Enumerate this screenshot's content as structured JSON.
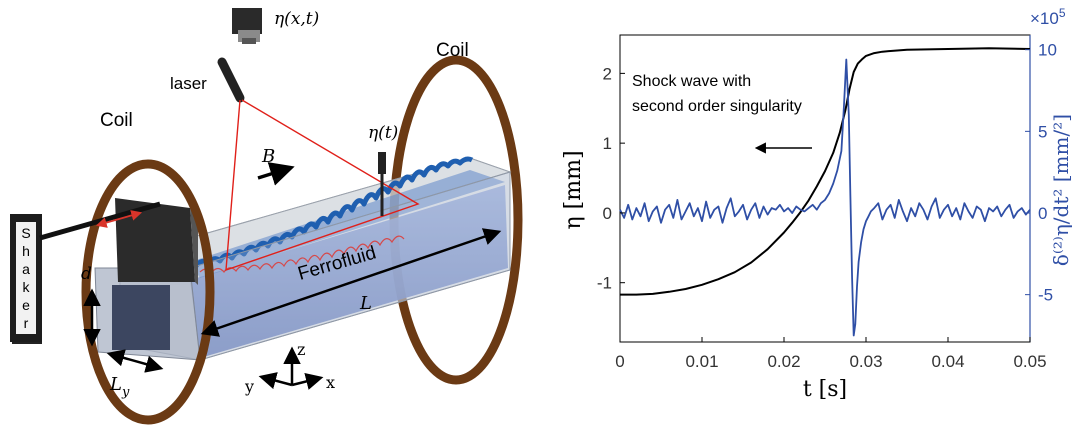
{
  "schematic": {
    "camera_label": "η(x,t)",
    "laser_label": "laser",
    "coil_left_label": "Coil",
    "coil_right_label": "Coil",
    "b_field_label": "B",
    "probe_label": "η(t)",
    "shaker_letters": [
      "S",
      "h",
      "a",
      "k",
      "e",
      "r"
    ],
    "ferrofluid_label": "Ferrofluid",
    "length_label": "L",
    "depth_label": "d",
    "width_label_main": "L",
    "width_label_sub": "y",
    "axis_z": "z",
    "axis_y": "y",
    "axis_x": "x"
  },
  "colors": {
    "coil": "#6b3a14",
    "laser": "#e0201a",
    "shaker_arrow": "#d9342a",
    "fluid": "#7f97c8",
    "wave": "#1f5fb0",
    "eta_line": "#000000",
    "accel_line": "#2f4fa6",
    "right_axis": "#2f4fa6"
  },
  "chart_data": {
    "type": "line",
    "xlabel": "t [s]",
    "ylabel_left": "η [mm]",
    "ylabel_right": "δ⁽²⁾η/dt² [mm/²]",
    "right_multiplier_base": "×10",
    "right_multiplier_exp": "5",
    "xlim": [
      0,
      0.05
    ],
    "ylim_left": [
      -1.85,
      2.55
    ],
    "ylim_right": [
      -7.9,
      10.9
    ],
    "x_ticks": [
      "0",
      "0.01",
      "0.02",
      "0.03",
      "0.04",
      "0.05"
    ],
    "y_ticks_left": [
      "-1",
      "0",
      "1",
      "2"
    ],
    "y_ticks_right": [
      "-5",
      "0",
      "5",
      "10"
    ],
    "annotation": [
      "Shock wave with",
      "second order singularity"
    ],
    "grid": false,
    "series": [
      {
        "axis": "left",
        "x": [
          0,
          0.002,
          0.004,
          0.006,
          0.008,
          0.01,
          0.012,
          0.014,
          0.016,
          0.018,
          0.02,
          0.021,
          0.022,
          0.023,
          0.024,
          0.025,
          0.026,
          0.0268,
          0.0275,
          0.028,
          0.0285,
          0.029,
          0.0295,
          0.03,
          0.031,
          0.032,
          0.033,
          0.035,
          0.04,
          0.045,
          0.05
        ],
        "y": [
          -1.17,
          -1.17,
          -1.16,
          -1.13,
          -1.09,
          -1.03,
          -0.95,
          -0.85,
          -0.71,
          -0.52,
          -0.28,
          -0.14,
          0.01,
          0.18,
          0.38,
          0.6,
          0.86,
          1.15,
          1.48,
          1.78,
          2.02,
          2.14,
          2.2,
          2.25,
          2.29,
          2.31,
          2.32,
          2.34,
          2.35,
          2.36,
          2.35
        ]
      },
      {
        "axis": "right",
        "x": [
          0,
          0.0005,
          0.001,
          0.0015,
          0.002,
          0.0025,
          0.003,
          0.0035,
          0.004,
          0.0045,
          0.005,
          0.0055,
          0.006,
          0.0065,
          0.007,
          0.0075,
          0.008,
          0.0085,
          0.009,
          0.0095,
          0.01,
          0.0105,
          0.011,
          0.0115,
          0.012,
          0.0125,
          0.013,
          0.0135,
          0.014,
          0.0145,
          0.015,
          0.0155,
          0.016,
          0.0165,
          0.017,
          0.0175,
          0.018,
          0.0185,
          0.019,
          0.0195,
          0.02,
          0.0205,
          0.021,
          0.0215,
          0.022,
          0.0225,
          0.023,
          0.0235,
          0.024,
          0.0245,
          0.025,
          0.0255,
          0.026,
          0.0265,
          0.027,
          0.0273,
          0.0276,
          0.0279,
          0.0281,
          0.0283,
          0.0285,
          0.0287,
          0.0289,
          0.0291,
          0.0294,
          0.0297,
          0.03,
          0.0303,
          0.0306,
          0.031,
          0.0315,
          0.032,
          0.0325,
          0.033,
          0.0335,
          0.034,
          0.0345,
          0.035,
          0.0355,
          0.036,
          0.0365,
          0.037,
          0.0375,
          0.038,
          0.0385,
          0.039,
          0.0395,
          0.04,
          0.0405,
          0.041,
          0.0415,
          0.042,
          0.0425,
          0.043,
          0.0435,
          0.044,
          0.0445,
          0.045,
          0.0455,
          0.046,
          0.0465,
          0.047,
          0.0475,
          0.048,
          0.0485,
          0.049,
          0.0495,
          0.05
        ],
        "y": [
          0.2,
          -0.3,
          0.5,
          -0.4,
          0.3,
          -0.2,
          0.6,
          -0.5,
          0.1,
          0.4,
          -0.6,
          0.2,
          0.5,
          -0.3,
          0.8,
          -0.4,
          0.1,
          0.6,
          -0.2,
          0.3,
          -0.5,
          0.7,
          -0.3,
          0.2,
          0.4,
          -0.6,
          0.3,
          0.9,
          -0.2,
          0.1,
          0.5,
          -0.4,
          0.2,
          0.6,
          -0.3,
          0.4,
          -0.1,
          0.3,
          0.2,
          0.5,
          0.1,
          0.3,
          0.0,
          0.4,
          0.2,
          0.1,
          0.3,
          0.5,
          0.2,
          0.6,
          0.8,
          1.2,
          1.8,
          2.6,
          3.8,
          6.5,
          9.4,
          6.0,
          1.0,
          -4.0,
          -7.5,
          -6.8,
          -4.5,
          -3.0,
          -1.8,
          -1.0,
          -0.5,
          -0.2,
          0.1,
          0.3,
          0.6,
          -0.4,
          0.2,
          0.5,
          -0.3,
          0.8,
          0.1,
          -0.5,
          0.3,
          -0.2,
          0.6,
          0.2,
          -0.4,
          0.4,
          0.9,
          -0.3,
          0.2,
          0.5,
          -0.2,
          0.3,
          -0.4,
          0.6,
          0.1,
          -0.3,
          0.4,
          0.2,
          -0.5,
          0.3,
          0.1,
          0.4,
          -0.2,
          0.2,
          0.5,
          -0.3,
          0.1,
          0.3,
          -0.1,
          0.2
        ]
      }
    ]
  }
}
